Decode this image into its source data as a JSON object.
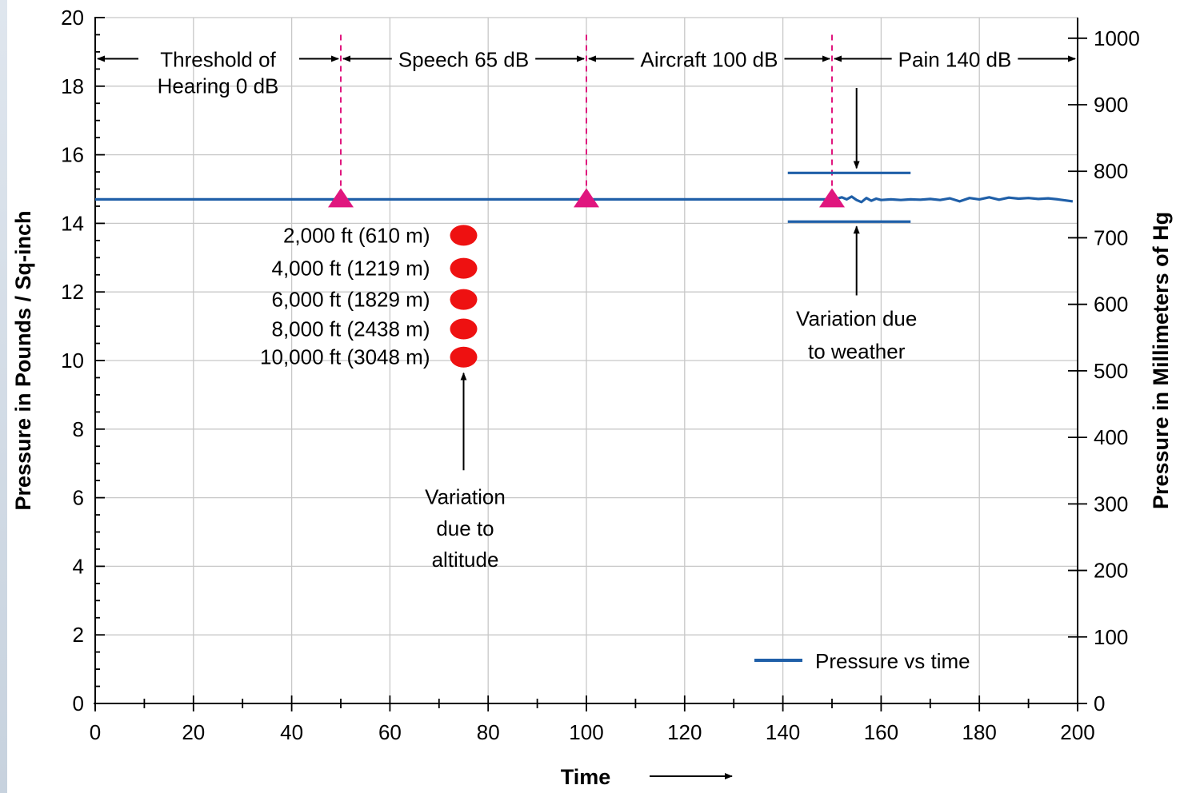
{
  "chart_data": {
    "type": "line",
    "xlabel": "Time",
    "ylabel": "Pressure in Pounds / Sq-inch",
    "y2label": "Pressure in Millimeters of Hg",
    "xlim": [
      0,
      200
    ],
    "ylim": [
      0,
      20
    ],
    "y2lim": [
      0,
      1031
    ],
    "x_ticks": [
      0,
      20,
      40,
      60,
      80,
      100,
      120,
      140,
      160,
      180,
      200
    ],
    "y_ticks": [
      0,
      2,
      4,
      6,
      8,
      10,
      12,
      14,
      16,
      18,
      20
    ],
    "y2_ticks": [
      0,
      100,
      200,
      300,
      400,
      500,
      600,
      700,
      800,
      900,
      1000
    ],
    "grid": true,
    "legend_position": "bottom-right",
    "series": [
      {
        "name": "Pressure vs time",
        "color": "#1f5fa8",
        "x": [
          0,
          150,
          151,
          152,
          153,
          154,
          155,
          156,
          157,
          158,
          159,
          160,
          162,
          164,
          166,
          168,
          170,
          172,
          174,
          176,
          178,
          180,
          182,
          184,
          186,
          188,
          190,
          192,
          194,
          196,
          198,
          199
        ],
        "y": [
          14.7,
          14.7,
          14.72,
          14.76,
          14.7,
          14.78,
          14.68,
          14.62,
          14.74,
          14.66,
          14.72,
          14.68,
          14.7,
          14.68,
          14.7,
          14.69,
          14.71,
          14.68,
          14.73,
          14.64,
          14.74,
          14.7,
          14.76,
          14.69,
          14.75,
          14.72,
          14.74,
          14.71,
          14.73,
          14.7,
          14.66,
          14.64
        ]
      }
    ],
    "threshold_markers": {
      "color": "#e0167e",
      "x": [
        50,
        100,
        150
      ],
      "y": 14.7
    },
    "regions": [
      {
        "label": "Threshold of Hearing 0 dB",
        "line1": "Threshold of",
        "line2": "Hearing 0 dB",
        "x_start": 0,
        "x_end": 50
      },
      {
        "label": "Speech 65 dB",
        "x_start": 50,
        "x_end": 100
      },
      {
        "label": "Aircraft 100 dB",
        "x_start": 100,
        "x_end": 150
      },
      {
        "label": "Pain 140 dB",
        "x_start": 150,
        "x_end": 200
      }
    ],
    "altitude_points": {
      "color": "#ee1111",
      "x": 75,
      "points": [
        {
          "label": "2,000 ft (610 m)",
          "y": 13.65
        },
        {
          "label": "4,000 ft (1219 m)",
          "y": 12.69
        },
        {
          "label": "6,000 ft (1829 m)",
          "y": 11.78
        },
        {
          "label": "8,000 ft (2438 m)",
          "y": 10.92
        },
        {
          "label": "10,000 ft (3048 m)",
          "y": 10.1
        }
      ]
    },
    "weather_band": {
      "x_start": 141,
      "x_end": 166,
      "y_upper": 15.47,
      "y_lower": 14.05
    },
    "annotations": {
      "altitude_note_lines": [
        "Variation",
        "due to",
        "altitude"
      ],
      "weather_note_lines": [
        "Variation due",
        "to weather"
      ]
    }
  }
}
